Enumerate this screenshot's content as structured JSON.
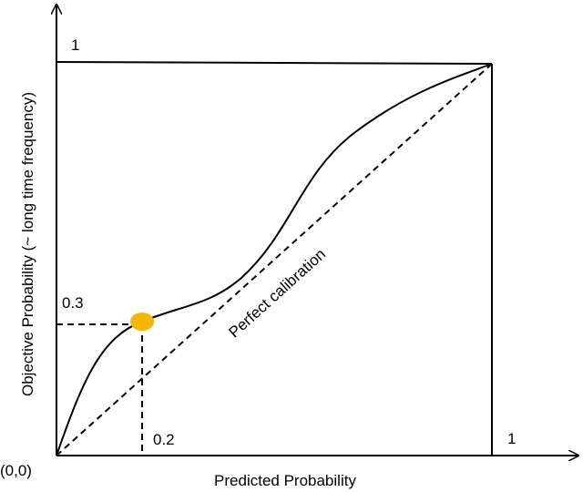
{
  "labels": {
    "top_one": "1",
    "y_marker": "0.3",
    "x_marker": "0.2",
    "right_one": "1",
    "origin": "(0,0)",
    "x_axis": "Predicted Probability",
    "y_axis": "Objective Probability (~ long time frequency)",
    "diagonal": "Perfect calibration"
  }
}
